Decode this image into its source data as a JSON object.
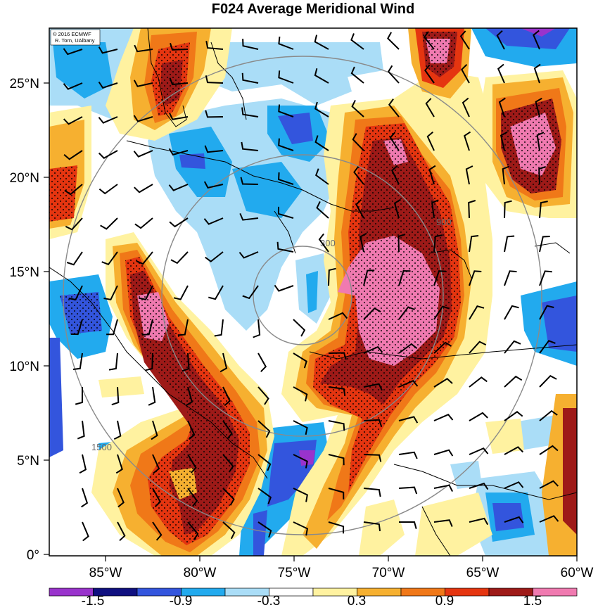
{
  "title": "F024 Average Meridional Wind",
  "credit": {
    "line1": "© 2016 ECMWF",
    "line2": "R. Torn, UAlbany"
  },
  "axes": {
    "lat_labels": [
      "25°N",
      "20°N",
      "15°N",
      "10°N",
      "5°N",
      "0°"
    ],
    "lon_labels": [
      "85°W",
      "80°W",
      "75°W",
      "70°W",
      "65°W",
      "60°W"
    ],
    "lat_range": [
      0,
      28
    ],
    "lon_range": [
      -88,
      -60
    ]
  },
  "colorbar": {
    "labels": [
      "-1.5",
      "-0.9",
      "-0.3",
      "0.3",
      "0.9",
      "1.5"
    ],
    "colors": [
      "#9933cc",
      "#101080",
      "#3355dd",
      "#22aaee",
      "#aaddf7",
      "#ffffff",
      "#fff2a0",
      "#f6b030",
      "#f07818",
      "#e53510",
      "#9e1a18",
      "#f07ab0"
    ]
  },
  "contour_labels": {
    "inner": "300",
    "middle": "900",
    "outer": "1500"
  },
  "legend_color_meaning": "shading: average meridional wind"
}
